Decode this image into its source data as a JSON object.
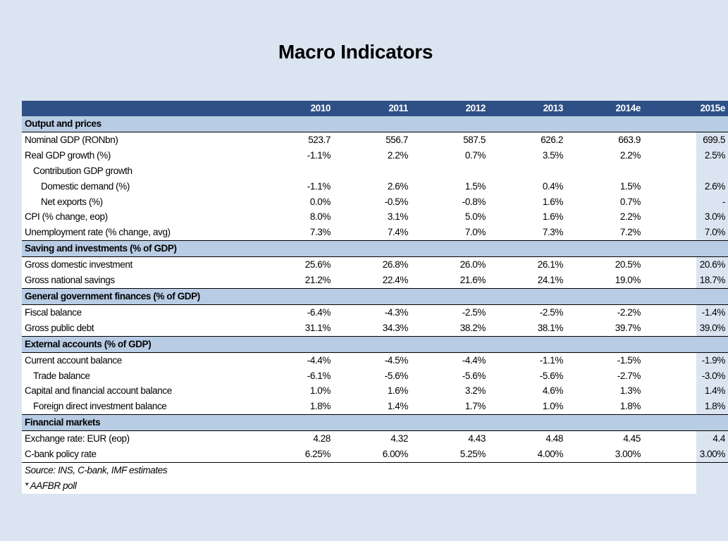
{
  "title": "Macro Indicators",
  "columns": [
    "2010",
    "2011",
    "2012",
    "2013",
    "2014e",
    "2015e"
  ],
  "sections": [
    {
      "name": "Output and prices",
      "rows": [
        {
          "label": "Nominal GDP (RONbn)",
          "indent": 0,
          "values": [
            "523.7",
            "556.7",
            "587.5",
            "626.2",
            "663.9",
            "699.5"
          ]
        },
        {
          "label": "Real GDP growth (%)",
          "indent": 0,
          "values": [
            "-1.1%",
            "2.2%",
            "0.7%",
            "3.5%",
            "2.2%",
            "2.5%"
          ]
        },
        {
          "label": "Contribution GDP growth",
          "indent": 1,
          "values": [
            "",
            "",
            "",
            "",
            "",
            ""
          ]
        },
        {
          "label": "Domestic demand (%)",
          "indent": 2,
          "values": [
            "-1.1%",
            "2.6%",
            "1.5%",
            "0.4%",
            "1.5%",
            "2.6%"
          ]
        },
        {
          "label": "Net exports (%)",
          "indent": 2,
          "values": [
            "0.0%",
            "-0.5%",
            "-0.8%",
            "1.6%",
            "0.7%",
            "-"
          ]
        },
        {
          "label": "CPI (% change, eop)",
          "indent": 0,
          "values": [
            "8.0%",
            "3.1%",
            "5.0%",
            "1.6%",
            "2.2%",
            "3.0%"
          ]
        },
        {
          "label": "Unemployment rate (% change, avg)",
          "indent": 0,
          "values": [
            "7.3%",
            "7.4%",
            "7.0%",
            "7.3%",
            "7.2%",
            "7.0%"
          ]
        }
      ]
    },
    {
      "name": "Saving and investments (% of GDP)",
      "rows": [
        {
          "label": "Gross domestic investment",
          "indent": 0,
          "values": [
            "25.6%",
            "26.8%",
            "26.0%",
            "26.1%",
            "20.5%",
            "20.6%"
          ]
        },
        {
          "label": "Gross national savings",
          "indent": 0,
          "values": [
            "21.2%",
            "22.4%",
            "21.6%",
            "24.1%",
            "19.0%",
            "18.7%"
          ]
        }
      ]
    },
    {
      "name": "General government finances (% of GDP)",
      "rows": [
        {
          "label": "Fiscal balance",
          "indent": 0,
          "values": [
            "-6.4%",
            "-4.3%",
            "-2.5%",
            "-2.5%",
            "-2.2%",
            "-1.4%"
          ]
        },
        {
          "label": "Gross public debt",
          "indent": 0,
          "values": [
            "31.1%",
            "34.3%",
            "38.2%",
            "38.1%",
            "39.7%",
            "39.0%"
          ]
        }
      ]
    },
    {
      "name": "External accounts (% of GDP)",
      "rows": [
        {
          "label": "Current account balance",
          "indent": 0,
          "values": [
            "-4.4%",
            "-4.5%",
            "-4.4%",
            "-1.1%",
            "-1.5%",
            "-1.9%"
          ]
        },
        {
          "label": "Trade balance",
          "indent": 1,
          "values": [
            "-6.1%",
            "-5.6%",
            "-5.6%",
            "-5.6%",
            "-2.7%",
            "-3.0%"
          ]
        },
        {
          "label": "Capital and financial account balance",
          "indent": 0,
          "values": [
            "1.0%",
            "1.6%",
            "3.2%",
            "4.6%",
            "1.3%",
            "1.4%"
          ]
        },
        {
          "label": "Foreign direct investment balance",
          "indent": 1,
          "values": [
            "1.8%",
            "1.4%",
            "1.7%",
            "1.0%",
            "1.8%",
            "1.8%"
          ]
        }
      ]
    },
    {
      "name": "Financial markets",
      "rows": [
        {
          "label": "Exchange rate: EUR (eop)",
          "indent": 0,
          "values": [
            "4.28",
            "4.32",
            "4.43",
            "4.48",
            "4.45",
            "4.4"
          ]
        },
        {
          "label": "C-bank policy rate",
          "indent": 0,
          "values": [
            "6.25%",
            "6.00%",
            "5.25%",
            "4.00%",
            "3.00%",
            "3.00%"
          ]
        }
      ]
    }
  ],
  "notes": [
    "Source: INS, C-bank, IMF estimates",
    "* AAFBR poll"
  ],
  "colors": {
    "background": "#dbe5f1",
    "header": "#2e5086",
    "section": "#b8cce4"
  }
}
